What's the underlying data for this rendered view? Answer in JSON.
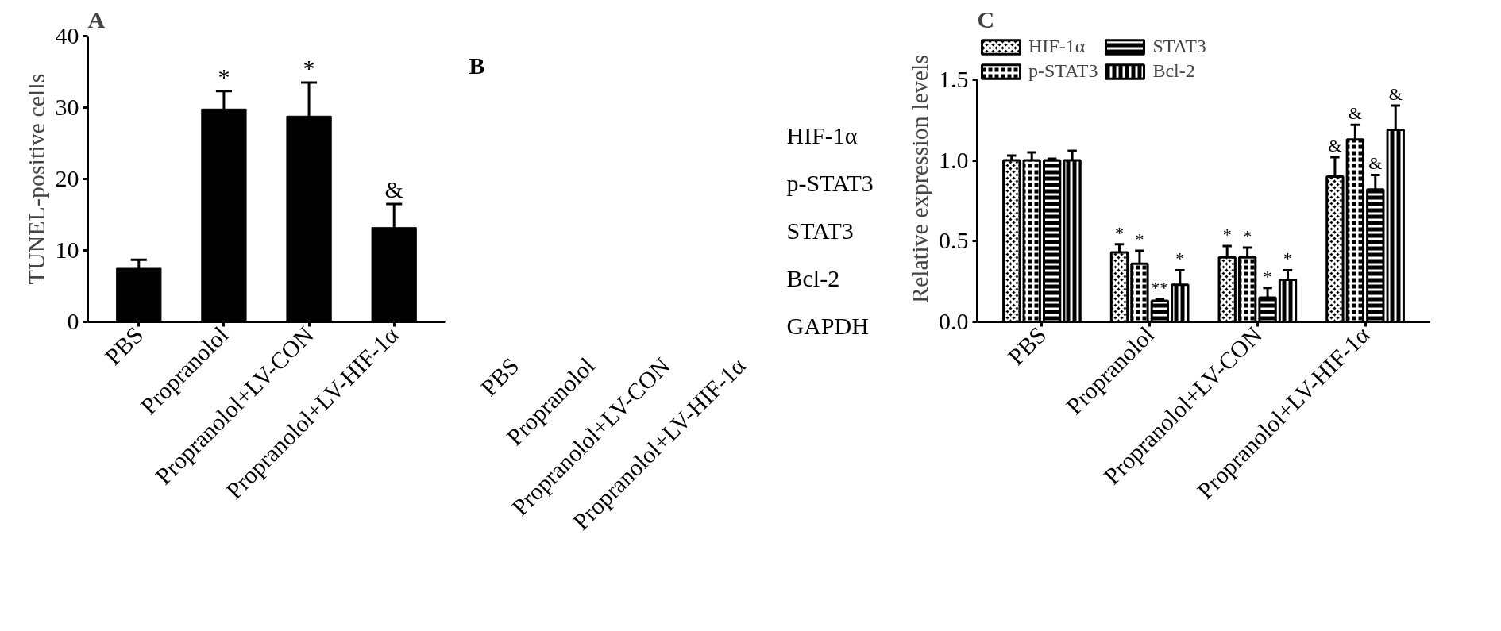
{
  "chart_data": [
    {
      "type": "bar",
      "title": "A",
      "ylabel": "TUNEL-positive cells",
      "categories": [
        "PBS",
        "Propranolol",
        "Propranolol+LV-CON",
        "Propranolol+LV-HIF-1α"
      ],
      "series": [
        {
          "color": "#000000",
          "values": [
            7.5,
            29.8,
            28.8,
            13.2
          ],
          "errors": [
            [
              7.5,
              8.7
            ],
            [
              29.8,
              32.3
            ],
            [
              28.8,
              33.5
            ],
            [
              13.2,
              16.5
            ]
          ],
          "value_labels": [
            null,
            "*",
            "*",
            "&"
          ]
        }
      ],
      "ylim": [
        0,
        40
      ],
      "yticks": [
        0,
        10,
        20,
        30,
        40
      ],
      "grid": false,
      "legend": false
    },
    {
      "type": "other",
      "title": "B",
      "categories": [
        "PBS",
        "Propranolol",
        "Propranolol+LV-CON",
        "Propranolol+LV-HIF-1α"
      ],
      "y_categories": [
        "HIF-1α",
        "p-STAT3",
        "STAT3",
        "Bcl-2",
        "GAPDH"
      ]
    },
    {
      "type": "bar",
      "title": "C",
      "ylabel": "Relative expression levels",
      "categories": [
        "PBS",
        "Propranolol",
        "Propranolol+LV-CON",
        "Propranolol+LV-HIF-1α"
      ],
      "series": [
        {
          "name": "HIF-1α",
          "color": "#000000",
          "values": [
            1.0,
            0.43,
            0.4,
            0.9
          ],
          "errors": [
            [
              1.0,
              1.03
            ],
            [
              0.43,
              0.48
            ],
            [
              0.4,
              0.47
            ],
            [
              0.9,
              1.02
            ]
          ],
          "value_labels": [
            null,
            "*",
            "*",
            "&"
          ]
        },
        {
          "name": "p-STAT3",
          "color": "#000000",
          "values": [
            1.0,
            0.36,
            0.4,
            1.13
          ],
          "errors": [
            [
              1.0,
              1.05
            ],
            [
              0.36,
              0.44
            ],
            [
              0.4,
              0.46
            ],
            [
              1.13,
              1.22
            ]
          ],
          "value_labels": [
            null,
            "*",
            "*",
            "&"
          ]
        },
        {
          "name": "STAT3",
          "color": "#000000",
          "values": [
            1.0,
            0.13,
            0.15,
            0.82
          ],
          "errors": [
            [
              1.0,
              1.01
            ],
            [
              0.13,
              0.14
            ],
            [
              0.15,
              0.21
            ],
            [
              0.82,
              0.91
            ]
          ],
          "value_labels": [
            null,
            "**",
            "*",
            "&"
          ]
        },
        {
          "name": "Bcl-2",
          "color": "#000000",
          "values": [
            1.0,
            0.23,
            0.26,
            1.19
          ],
          "errors": [
            [
              1.0,
              1.06
            ],
            [
              0.23,
              0.32
            ],
            [
              0.26,
              0.32
            ],
            [
              1.19,
              1.34
            ]
          ],
          "value_labels": [
            null,
            "*",
            "*",
            "&"
          ]
        }
      ],
      "ylim": [
        0,
        1.5
      ],
      "yticks": [
        {
          "value": 0,
          "label": "0.0"
        },
        {
          "value": 0.5,
          "label": "0.5"
        },
        {
          "value": 1.0,
          "label": "1.0"
        },
        {
          "value": 1.5,
          "label": "1.5"
        }
      ],
      "grid": false,
      "legend": "top"
    }
  ]
}
